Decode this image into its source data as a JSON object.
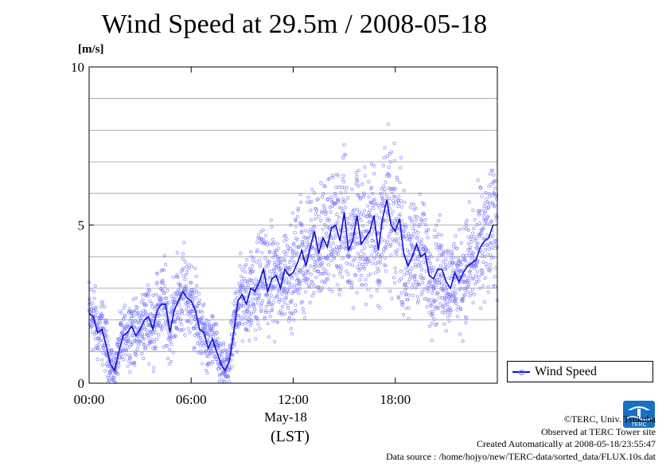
{
  "chart_data": {
    "type": "scatter",
    "title": "Wind Speed at 29.5m / 2008-05-18",
    "ylabel": "[m/s]",
    "ylim": [
      0,
      10
    ],
    "yticks": [
      "0",
      "5",
      "10"
    ],
    "xlim": [
      "00:00",
      "24:00"
    ],
    "xticks": [
      "00:00",
      "06:00",
      "12:00",
      "18:00"
    ],
    "xlabel_date": "May-18",
    "xlabel_tz": "(LST)",
    "grid": true,
    "legend_position": "bottom-right",
    "series": [
      {
        "name": "Wind Speed",
        "render": "scatter points (10 s samples) with running-mean line",
        "point_color": "#7777ff",
        "line_color": "#1010d0",
        "hours": [
          0,
          0.25,
          0.5,
          0.75,
          1,
          1.25,
          1.5,
          1.75,
          2,
          2.25,
          2.5,
          2.75,
          3,
          3.25,
          3.5,
          3.75,
          4,
          4.25,
          4.5,
          4.75,
          5,
          5.25,
          5.5,
          5.75,
          6,
          6.25,
          6.5,
          6.75,
          7,
          7.25,
          7.5,
          7.75,
          8,
          8.25,
          8.5,
          8.75,
          9,
          9.25,
          9.5,
          9.75,
          10,
          10.25,
          10.5,
          10.75,
          11,
          11.25,
          11.5,
          11.75,
          12,
          12.25,
          12.5,
          12.75,
          13,
          13.25,
          13.5,
          13.75,
          14,
          14.25,
          14.5,
          14.75,
          15,
          15.25,
          15.5,
          15.75,
          16,
          16.25,
          16.5,
          16.75,
          17,
          17.25,
          17.5,
          17.75,
          18,
          18.25,
          18.5,
          18.75,
          19,
          19.25,
          19.5,
          19.75,
          20,
          20.25,
          20.5,
          20.75,
          21,
          21.25,
          21.5,
          21.75,
          22,
          22.25,
          22.5,
          22.75,
          23,
          23.25,
          23.5,
          23.75
        ],
        "mean_values": [
          2.2,
          2.1,
          1.6,
          1.7,
          1.2,
          0.6,
          0.4,
          1.0,
          1.5,
          1.6,
          1.8,
          1.5,
          1.7,
          2.0,
          2.1,
          1.7,
          2.3,
          2.5,
          2.5,
          1.6,
          2.3,
          2.6,
          2.9,
          2.7,
          2.6,
          2.3,
          1.7,
          1.6,
          1.1,
          1.4,
          1.0,
          0.6,
          0.4,
          0.7,
          1.6,
          2.6,
          2.8,
          2.5,
          3.0,
          2.9,
          3.2,
          3.6,
          2.9,
          3.3,
          3.4,
          3.0,
          3.6,
          3.4,
          3.5,
          3.8,
          4.2,
          3.7,
          4.3,
          4.8,
          4.1,
          4.6,
          4.3,
          4.9,
          5.0,
          4.5,
          5.4,
          4.2,
          4.5,
          5.3,
          4.4,
          4.6,
          4.8,
          5.3,
          4.2,
          5.2,
          5.8,
          5.0,
          4.8,
          5.2,
          4.1,
          3.7,
          4.0,
          4.4,
          4.0,
          4.1,
          3.4,
          3.3,
          3.6,
          3.6,
          3.2,
          3.0,
          3.5,
          3.2,
          3.5,
          3.7,
          3.8,
          3.9,
          4.3,
          4.5,
          4.6,
          5.0
        ]
      }
    ]
  },
  "legend": {
    "label": "Wind Speed"
  },
  "credits": {
    "copyright": "©TERC, Univ. Tsukuba",
    "observed": "Observed at TERC Tower site",
    "created": "Created Automatically at 2008-05-18/23:55:47",
    "source": "Data source : /home/hojyo/new/TERC-data/sorted_data/FLUX.10s.dat"
  },
  "logo": {
    "text": "TERC"
  },
  "colors": {
    "points": "#7777ff",
    "mean_line": "#1010d0",
    "grid": "#999999"
  }
}
